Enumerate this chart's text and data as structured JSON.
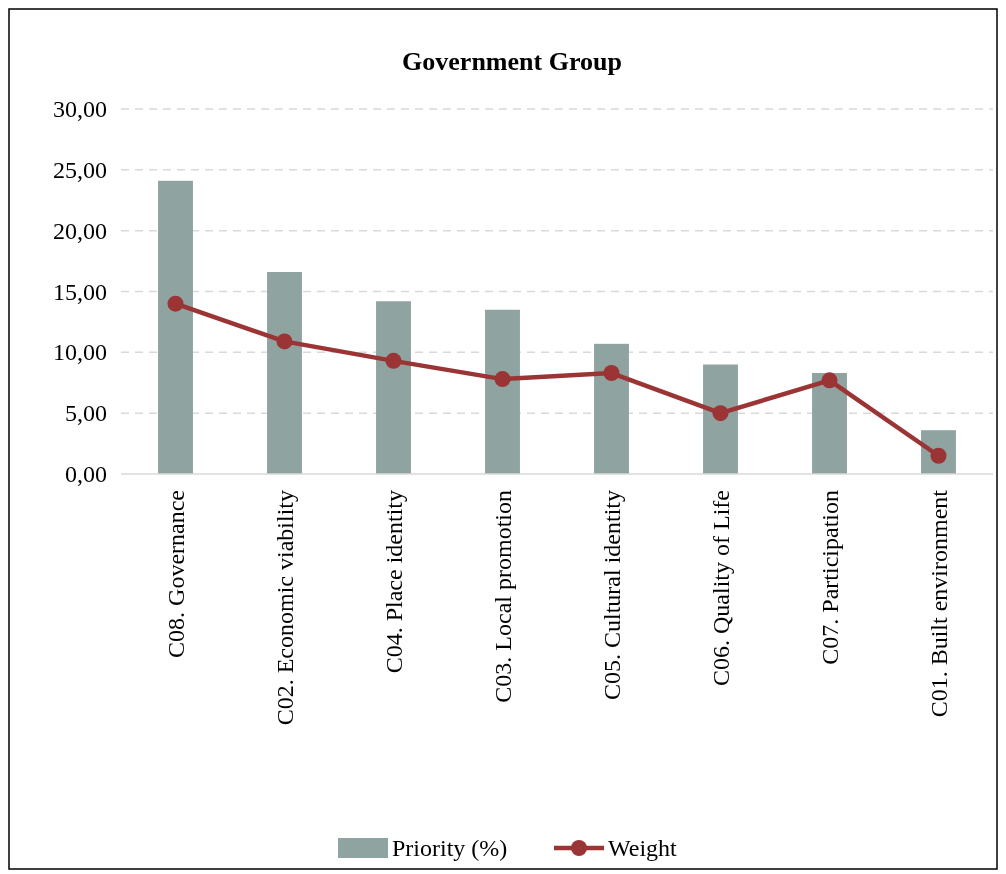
{
  "chart_data": {
    "type": "bar",
    "title": "Government Group",
    "categories": [
      "C08. Governance",
      "C02. Economic viability",
      "C04. Place identity",
      "C03. Local promotion",
      "C05. Cultural identity",
      "C06. Quality of Life",
      "C07. Participation",
      "C01. Built environment"
    ],
    "series": [
      {
        "name": "Priority (%)",
        "color": "#8fa3a1",
        "values": [
          24.1,
          16.6,
          14.2,
          13.5,
          10.7,
          9.0,
          8.3,
          3.6
        ]
      },
      {
        "name": "Weight",
        "type": "line",
        "color": "#9b3434",
        "values": [
          14.0,
          10.9,
          9.3,
          7.8,
          8.3,
          5.0,
          7.7,
          1.5
        ]
      }
    ],
    "ylim": [
      0,
      30
    ],
    "yticks": [
      {
        "value": 0,
        "label": "0,00"
      },
      {
        "value": 5,
        "label": "5,00"
      },
      {
        "value": 10,
        "label": "10,00"
      },
      {
        "value": 15,
        "label": "15,00"
      },
      {
        "value": 20,
        "label": "20,00"
      },
      {
        "value": 25,
        "label": "25,00"
      },
      {
        "value": 30,
        "label": "30,00"
      }
    ],
    "grid": "y",
    "legend": "bottom",
    "marker": "circle",
    "line_style": "solid"
  }
}
